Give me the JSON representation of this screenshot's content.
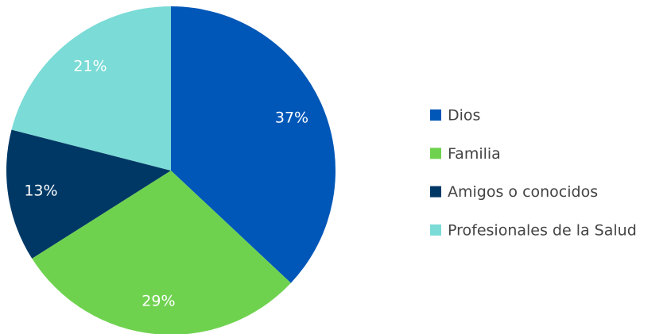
{
  "chart_data": {
    "type": "pie",
    "categories": [
      "Dios",
      "Familia",
      "Amigos o conocidos",
      "Profesionales de la Salud"
    ],
    "values": [
      37,
      29,
      13,
      21
    ],
    "value_labels": [
      "37%",
      "29%",
      "13%",
      "21%"
    ],
    "colors": [
      "#0057b8",
      "#6fd24f",
      "#003865",
      "#7bdbd6"
    ],
    "legend": "right"
  }
}
